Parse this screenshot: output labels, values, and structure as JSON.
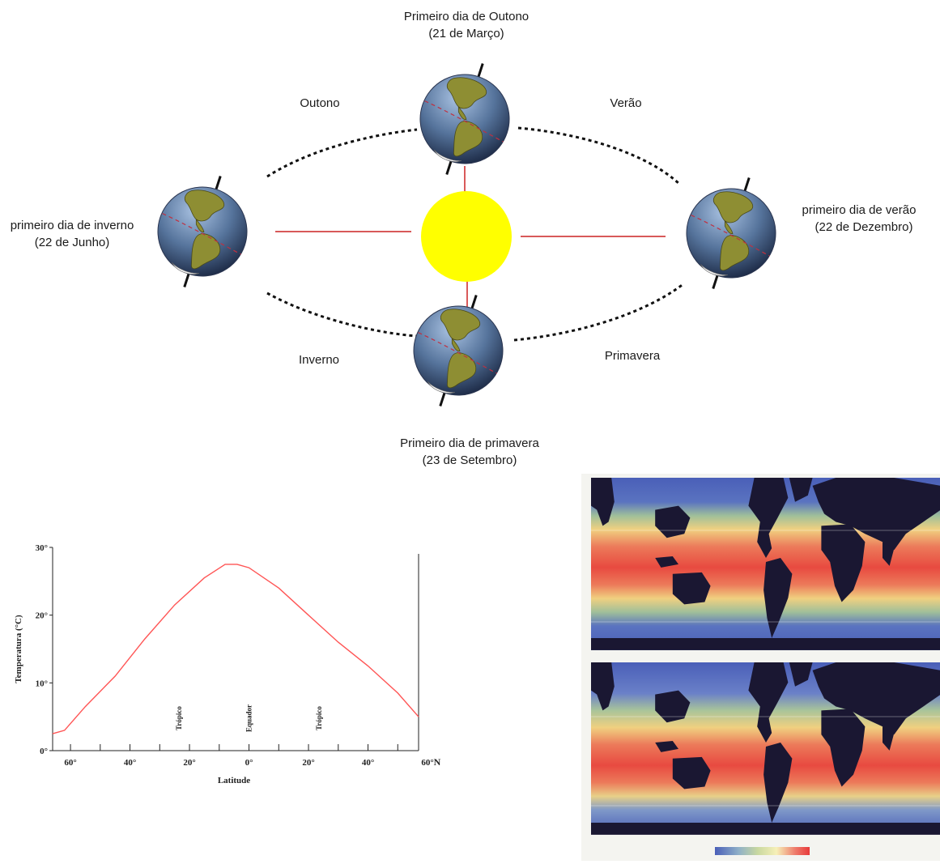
{
  "orbit": {
    "seasons": {
      "top_left": "Outono",
      "top_right": "Verão",
      "bottom_left": "Inverno",
      "bottom_right": "Primavera"
    },
    "positions": {
      "top": {
        "line1": "Primeiro dia de Outono",
        "line2": "(21 de Março)"
      },
      "left": {
        "line1": "primeiro dia de inverno",
        "line2": "(22 de Junho)"
      },
      "right": {
        "line1": "primeiro dia de verão",
        "line2": "(22 de Dezembro)"
      },
      "bottom": {
        "line1": "Primeiro dia de primavera",
        "line2": "(23 de Setembro)"
      }
    },
    "colors": {
      "sun": "#ffff00",
      "ray": "#cc2222",
      "orbit": "#111111",
      "ocean": "#4f6f9a",
      "land": "#8e8e33"
    }
  },
  "chart_data": {
    "type": "line",
    "xlabel": "Latitude",
    "ylabel": "Temperatura (°C)",
    "x_unit_label": "N",
    "x_ticks": [
      {
        "value": -60,
        "label": "60°"
      },
      {
        "value": -40,
        "label": "40°"
      },
      {
        "value": -20,
        "label": "20°"
      },
      {
        "value": 0,
        "label": "0°"
      },
      {
        "value": 20,
        "label": "20°"
      },
      {
        "value": 40,
        "label": "40°"
      },
      {
        "value": 60,
        "label": "60°"
      }
    ],
    "y_ticks": [
      {
        "value": 0,
        "label": "0°"
      },
      {
        "value": 10,
        "label": "10°"
      },
      {
        "value": 20,
        "label": "20°"
      },
      {
        "value": 30,
        "label": "30°"
      }
    ],
    "xlim": [
      -66,
      57
    ],
    "ylim": [
      0,
      30
    ],
    "markers": [
      {
        "x": -23.5,
        "label": "Trópico"
      },
      {
        "x": 0,
        "label": "Equador"
      },
      {
        "x": 23.5,
        "label": "Trópico"
      }
    ],
    "series": [
      {
        "color": "#ff5555",
        "x": [
          -66,
          -62,
          -55,
          -45,
          -35,
          -25,
          -15,
          -8,
          -4,
          0,
          10,
          20,
          30,
          40,
          50,
          57
        ],
        "values": [
          2.5,
          3,
          6.5,
          11,
          16.5,
          21.5,
          25.5,
          27.5,
          27.5,
          27,
          24,
          20,
          16,
          12.5,
          8.5,
          5
        ]
      }
    ]
  },
  "maps": {
    "colors": {
      "ocean_cold": "#4a5fb8",
      "ocean_mid": "#9fbf9a",
      "ocean_warm": "#f0d080",
      "ocean_hot": "#e84a40",
      "land": "#1a1732"
    }
  }
}
